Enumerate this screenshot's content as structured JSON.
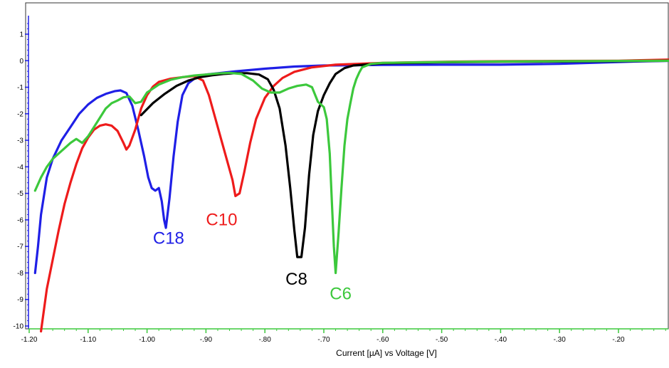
{
  "chart_data": {
    "type": "line",
    "title": "",
    "xlabel": "Current [µA] vs Voltage [V]",
    "ylabel": "",
    "xlim": [
      -1.2,
      -0.1
    ],
    "ylim": [
      -10,
      1.5
    ],
    "x_ticks": [
      -1.2,
      -1.1,
      -1.0,
      -0.9,
      -0.8,
      -0.7,
      -0.6,
      -0.5,
      -0.4,
      -0.3,
      -0.2
    ],
    "x_tick_labels": [
      "-1.20",
      "-1.10",
      "-1.00",
      "-.90",
      "-.80",
      "-.70",
      "-.60",
      "-.50",
      "-.40",
      "-.30",
      "-.20"
    ],
    "y_ticks": [
      1,
      0,
      -1,
      -2,
      -3,
      -4,
      -5,
      -6,
      -7,
      -8,
      -9,
      -10
    ],
    "y_tick_labels": [
      "1",
      "0",
      "-1",
      "-2",
      "-3",
      "-4",
      "-5",
      "-6",
      "-7",
      "-8",
      "-9",
      "-10"
    ],
    "grid": false,
    "legend": "none",
    "series": [
      {
        "name": "C18",
        "color": "#1f1fe6",
        "label_at": [
          -0.99,
          -6.9
        ],
        "points": [
          [
            -1.19,
            -8.0
          ],
          [
            -1.185,
            -7.0
          ],
          [
            -1.18,
            -5.8
          ],
          [
            -1.17,
            -4.4
          ],
          [
            -1.16,
            -3.7
          ],
          [
            -1.145,
            -3.0
          ],
          [
            -1.13,
            -2.5
          ],
          [
            -1.115,
            -2.0
          ],
          [
            -1.1,
            -1.65
          ],
          [
            -1.085,
            -1.4
          ],
          [
            -1.07,
            -1.25
          ],
          [
            -1.055,
            -1.15
          ],
          [
            -1.045,
            -1.12
          ],
          [
            -1.035,
            -1.22
          ],
          [
            -1.025,
            -1.7
          ],
          [
            -1.015,
            -2.6
          ],
          [
            -1.005,
            -3.6
          ],
          [
            -0.998,
            -4.4
          ],
          [
            -0.992,
            -4.8
          ],
          [
            -0.986,
            -4.9
          ],
          [
            -0.98,
            -4.8
          ],
          [
            -0.975,
            -5.3
          ],
          [
            -0.971,
            -6.0
          ],
          [
            -0.968,
            -6.3
          ],
          [
            -0.962,
            -5.2
          ],
          [
            -0.955,
            -3.6
          ],
          [
            -0.948,
            -2.3
          ],
          [
            -0.94,
            -1.3
          ],
          [
            -0.93,
            -0.85
          ],
          [
            -0.915,
            -0.6
          ],
          [
            -0.9,
            -0.52
          ],
          [
            -0.85,
            -0.4
          ],
          [
            -0.8,
            -0.3
          ],
          [
            -0.75,
            -0.22
          ],
          [
            -0.7,
            -0.18
          ],
          [
            -0.6,
            -0.16
          ],
          [
            -0.5,
            -0.15
          ],
          [
            -0.4,
            -0.15
          ],
          [
            -0.3,
            -0.12
          ],
          [
            -0.2,
            -0.05
          ],
          [
            -0.15,
            -0.02
          ],
          [
            -0.1,
            0.0
          ]
        ]
      },
      {
        "name": "C10",
        "color": "#ee1b1b",
        "label_at": [
          -0.9,
          -6.2
        ],
        "points": [
          [
            -1.18,
            -10.2
          ],
          [
            -1.175,
            -9.4
          ],
          [
            -1.17,
            -8.6
          ],
          [
            -1.16,
            -7.5
          ],
          [
            -1.15,
            -6.4
          ],
          [
            -1.14,
            -5.4
          ],
          [
            -1.13,
            -4.6
          ],
          [
            -1.12,
            -3.9
          ],
          [
            -1.11,
            -3.3
          ],
          [
            -1.1,
            -2.9
          ],
          [
            -1.09,
            -2.6
          ],
          [
            -1.08,
            -2.45
          ],
          [
            -1.07,
            -2.4
          ],
          [
            -1.06,
            -2.45
          ],
          [
            -1.05,
            -2.65
          ],
          [
            -1.04,
            -3.1
          ],
          [
            -1.035,
            -3.35
          ],
          [
            -1.03,
            -3.2
          ],
          [
            -1.02,
            -2.6
          ],
          [
            -1.01,
            -1.8
          ],
          [
            -1.0,
            -1.3
          ],
          [
            -0.99,
            -0.98
          ],
          [
            -0.98,
            -0.8
          ],
          [
            -0.96,
            -0.68
          ],
          [
            -0.94,
            -0.62
          ],
          [
            -0.92,
            -0.58
          ],
          [
            -0.905,
            -0.75
          ],
          [
            -0.895,
            -1.3
          ],
          [
            -0.885,
            -2.1
          ],
          [
            -0.875,
            -2.9
          ],
          [
            -0.865,
            -3.7
          ],
          [
            -0.855,
            -4.5
          ],
          [
            -0.85,
            -5.1
          ],
          [
            -0.843,
            -5.0
          ],
          [
            -0.835,
            -4.2
          ],
          [
            -0.825,
            -3.1
          ],
          [
            -0.815,
            -2.2
          ],
          [
            -0.8,
            -1.4
          ],
          [
            -0.785,
            -0.95
          ],
          [
            -0.77,
            -0.65
          ],
          [
            -0.75,
            -0.42
          ],
          [
            -0.72,
            -0.25
          ],
          [
            -0.68,
            -0.15
          ],
          [
            -0.6,
            -0.08
          ],
          [
            -0.5,
            -0.04
          ],
          [
            -0.4,
            -0.02
          ],
          [
            -0.3,
            -0.01
          ],
          [
            -0.2,
            0.0
          ],
          [
            -0.1,
            0.05
          ]
        ]
      },
      {
        "name": "C8",
        "color": "#000000",
        "label_at": [
          -0.765,
          -8.45
        ],
        "points": [
          [
            -1.01,
            -2.05
          ],
          [
            -0.99,
            -1.6
          ],
          [
            -0.97,
            -1.25
          ],
          [
            -0.95,
            -0.95
          ],
          [
            -0.93,
            -0.75
          ],
          [
            -0.91,
            -0.62
          ],
          [
            -0.89,
            -0.55
          ],
          [
            -0.87,
            -0.5
          ],
          [
            -0.85,
            -0.47
          ],
          [
            -0.83,
            -0.47
          ],
          [
            -0.81,
            -0.52
          ],
          [
            -0.795,
            -0.7
          ],
          [
            -0.785,
            -1.1
          ],
          [
            -0.775,
            -1.8
          ],
          [
            -0.765,
            -3.2
          ],
          [
            -0.757,
            -4.8
          ],
          [
            -0.75,
            -6.4
          ],
          [
            -0.745,
            -7.4
          ],
          [
            -0.738,
            -7.4
          ],
          [
            -0.732,
            -6.3
          ],
          [
            -0.725,
            -4.3
          ],
          [
            -0.718,
            -2.8
          ],
          [
            -0.71,
            -1.9
          ],
          [
            -0.7,
            -1.3
          ],
          [
            -0.69,
            -0.85
          ],
          [
            -0.68,
            -0.5
          ],
          [
            -0.665,
            -0.28
          ],
          [
            -0.65,
            -0.18
          ],
          [
            -0.6,
            -0.1
          ],
          [
            -0.5,
            -0.06
          ],
          [
            -0.4,
            -0.04
          ],
          [
            -0.3,
            -0.03
          ],
          [
            -0.2,
            -0.02
          ],
          [
            -0.1,
            0.0
          ]
        ]
      },
      {
        "name": "C6",
        "color": "#3cc83c",
        "label_at": [
          -0.69,
          -9.0
        ],
        "points": [
          [
            -1.19,
            -4.9
          ],
          [
            -1.18,
            -4.4
          ],
          [
            -1.17,
            -4.0
          ],
          [
            -1.16,
            -3.7
          ],
          [
            -1.15,
            -3.5
          ],
          [
            -1.14,
            -3.3
          ],
          [
            -1.13,
            -3.1
          ],
          [
            -1.12,
            -2.95
          ],
          [
            -1.11,
            -3.1
          ],
          [
            -1.1,
            -2.85
          ],
          [
            -1.09,
            -2.5
          ],
          [
            -1.08,
            -2.15
          ],
          [
            -1.07,
            -1.8
          ],
          [
            -1.06,
            -1.6
          ],
          [
            -1.05,
            -1.5
          ],
          [
            -1.04,
            -1.38
          ],
          [
            -1.03,
            -1.35
          ],
          [
            -1.02,
            -1.6
          ],
          [
            -1.01,
            -1.55
          ],
          [
            -1.0,
            -1.2
          ],
          [
            -0.98,
            -0.9
          ],
          [
            -0.96,
            -0.72
          ],
          [
            -0.94,
            -0.62
          ],
          [
            -0.92,
            -0.56
          ],
          [
            -0.9,
            -0.52
          ],
          [
            -0.88,
            -0.48
          ],
          [
            -0.86,
            -0.46
          ],
          [
            -0.84,
            -0.5
          ],
          [
            -0.82,
            -0.75
          ],
          [
            -0.805,
            -1.05
          ],
          [
            -0.79,
            -1.2
          ],
          [
            -0.775,
            -1.2
          ],
          [
            -0.76,
            -1.05
          ],
          [
            -0.745,
            -0.95
          ],
          [
            -0.73,
            -0.9
          ],
          [
            -0.72,
            -1.0
          ],
          [
            -0.71,
            -1.55
          ],
          [
            -0.7,
            -1.75
          ],
          [
            -0.695,
            -2.2
          ],
          [
            -0.69,
            -3.5
          ],
          [
            -0.686,
            -5.5
          ],
          [
            -0.683,
            -7.0
          ],
          [
            -0.68,
            -8.0
          ],
          [
            -0.675,
            -6.5
          ],
          [
            -0.67,
            -4.8
          ],
          [
            -0.665,
            -3.2
          ],
          [
            -0.66,
            -2.2
          ],
          [
            -0.655,
            -1.6
          ],
          [
            -0.65,
            -1.05
          ],
          [
            -0.645,
            -0.7
          ],
          [
            -0.64,
            -0.45
          ],
          [
            -0.635,
            -0.25
          ],
          [
            -0.62,
            -0.12
          ],
          [
            -0.6,
            -0.08
          ],
          [
            -0.5,
            -0.05
          ],
          [
            -0.4,
            -0.03
          ],
          [
            -0.3,
            -0.02
          ],
          [
            -0.2,
            -0.01
          ],
          [
            -0.1,
            0.0
          ]
        ]
      }
    ]
  }
}
